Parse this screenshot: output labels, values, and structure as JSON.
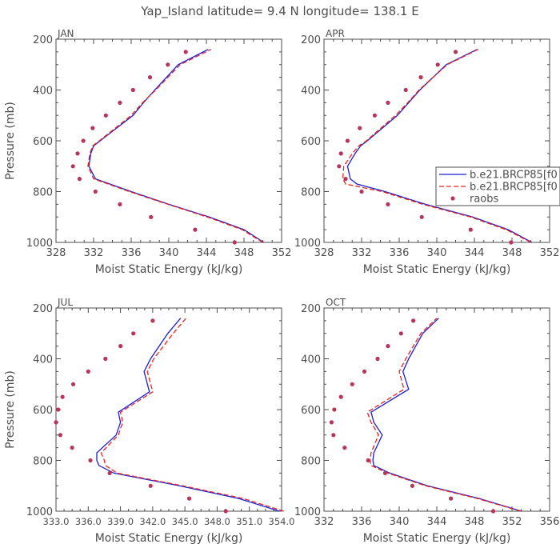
{
  "figure": {
    "title": "Yap_Island  latitude= 9.4 N longitude= 138.1 E"
  },
  "legend": {
    "entries": [
      {
        "label": "b.e21.BRCP85[f0",
        "color": "#1f1fd6",
        "style": "solid"
      },
      {
        "label": "b.e21.BRCP85[f0",
        "color": "#e8251f",
        "style": "dashed"
      },
      {
        "label": "raobs",
        "color": "#b8355a",
        "style": "marker"
      }
    ]
  },
  "chart_data": [
    {
      "type": "line",
      "panel_label": "JAN",
      "xlabel": "Moist Static Energy (kJ/kg)",
      "ylabel": "Pressure (mb)",
      "xlim": [
        328,
        352
      ],
      "ylim": [
        1000,
        200
      ],
      "xticks": [
        "328",
        "332",
        "336",
        "340",
        "344",
        "348",
        "352"
      ],
      "yticks": [
        "200",
        "400",
        "600",
        "800",
        "1000"
      ],
      "show_legend": false,
      "series": [
        {
          "pressure": [
            1000,
            950,
            900,
            850,
            800,
            750,
            700,
            650,
            620,
            600,
            500,
            450,
            400,
            300,
            240
          ],
          "mse": [
            350.1,
            348.0,
            344.3,
            340.0,
            336.0,
            332.2,
            331.5,
            331.7,
            332.0,
            332.7,
            336.2,
            337.3,
            338.5,
            341.0,
            344.2
          ]
        },
        {
          "pressure": [
            1000,
            950,
            900,
            850,
            800,
            750,
            700,
            650,
            620,
            600,
            500,
            450,
            400,
            300,
            240
          ],
          "mse": [
            350.0,
            347.8,
            344.1,
            339.9,
            335.8,
            332.0,
            331.4,
            331.6,
            331.9,
            332.6,
            336.0,
            337.2,
            338.6,
            341.2,
            344.5
          ]
        },
        {
          "pressure": [
            250,
            300,
            350,
            400,
            450,
            500,
            550,
            600,
            650,
            700,
            750,
            800,
            850,
            900,
            950,
            1000
          ],
          "mse": [
            341.8,
            339.9,
            338.0,
            336.2,
            334.8,
            333.3,
            331.9,
            330.9,
            330.3,
            329.8,
            330.5,
            332.2,
            334.8,
            338.1,
            342.8,
            347.0
          ]
        }
      ]
    },
    {
      "type": "line",
      "panel_label": "APR",
      "xlabel": "Moist Static Energy (kJ/kg)",
      "ylabel": "",
      "xlim": [
        328,
        352
      ],
      "ylim": [
        1000,
        200
      ],
      "xticks": [
        "328",
        "332",
        "336",
        "340",
        "344",
        "348",
        "352"
      ],
      "yticks": [
        "200",
        "400",
        "600",
        "800",
        "1000"
      ],
      "show_legend": true,
      "series": [
        {
          "pressure": [
            1000,
            950,
            900,
            850,
            800,
            770,
            750,
            700,
            650,
            620,
            600,
            500,
            450,
            400,
            300,
            240
          ],
          "mse": [
            350.1,
            347.6,
            343.8,
            338.8,
            334.5,
            331.5,
            330.8,
            330.5,
            331.3,
            331.9,
            332.6,
            335.8,
            337.0,
            338.2,
            341.0,
            344.3
          ]
        },
        {
          "pressure": [
            1000,
            950,
            900,
            850,
            800,
            770,
            750,
            700,
            650,
            620,
            600,
            500,
            450,
            400,
            300,
            240
          ],
          "mse": [
            350.0,
            347.4,
            343.6,
            338.5,
            334.2,
            330.3,
            330.0,
            330.1,
            331.0,
            331.7,
            332.5,
            335.6,
            336.9,
            338.1,
            341.1,
            344.4
          ]
        },
        {
          "pressure": [
            250,
            300,
            350,
            400,
            450,
            500,
            550,
            600,
            650,
            700,
            750,
            800,
            850,
            900,
            950,
            1000
          ],
          "mse": [
            342.0,
            340.1,
            338.3,
            336.7,
            334.8,
            333.4,
            331.8,
            330.5,
            329.8,
            329.6,
            330.3,
            332.0,
            334.8,
            338.4,
            343.6,
            347.9
          ]
        }
      ]
    },
    {
      "type": "line",
      "panel_label": "JUL",
      "xlabel": "Moist Static Energy (kJ/kg)",
      "ylabel": "Pressure (mb)",
      "xlim": [
        333.0,
        354.0
      ],
      "ylim": [
        1000,
        200
      ],
      "xticks": [
        "333.0",
        "336.0",
        "339.0",
        "342.0",
        "345.0",
        "348.0",
        "351.0",
        "354.0"
      ],
      "yticks": [
        "200",
        "400",
        "600",
        "800",
        "1000"
      ],
      "show_legend": false,
      "series": [
        {
          "pressure": [
            1000,
            950,
            900,
            850,
            820,
            800,
            770,
            700,
            650,
            610,
            530,
            450,
            400,
            300,
            240
          ],
          "mse": [
            353.8,
            350.0,
            344.5,
            338.4,
            337.0,
            336.8,
            336.8,
            338.6,
            339.0,
            338.8,
            341.7,
            341.2,
            341.8,
            343.4,
            344.6
          ]
        },
        {
          "pressure": [
            1000,
            950,
            900,
            850,
            820,
            800,
            770,
            700,
            650,
            610,
            530,
            450,
            400,
            300,
            240
          ],
          "mse": [
            354.2,
            350.4,
            344.8,
            338.7,
            337.6,
            337.5,
            337.2,
            338.8,
            339.2,
            339.0,
            342.0,
            341.5,
            342.1,
            343.9,
            345.1
          ]
        },
        {
          "pressure": [
            250,
            300,
            350,
            400,
            450,
            500,
            550,
            600,
            650,
            700,
            750,
            800,
            850,
            900,
            950,
            1000
          ],
          "mse": [
            342.0,
            340.2,
            339.0,
            337.6,
            336.0,
            334.6,
            333.6,
            333.2,
            333.0,
            333.4,
            334.5,
            336.2,
            338.0,
            341.8,
            345.4,
            348.8
          ]
        }
      ]
    },
    {
      "type": "line",
      "panel_label": "OCT",
      "xlabel": "Moist Static Energy (kJ/kg)",
      "ylabel": "",
      "xlim": [
        332,
        356
      ],
      "ylim": [
        1000,
        200
      ],
      "xticks": [
        "332",
        "336",
        "340",
        "344",
        "348",
        "352",
        "356"
      ],
      "yticks": [
        "200",
        "400",
        "600",
        "800",
        "1000"
      ],
      "show_legend": false,
      "series": [
        {
          "pressure": [
            1000,
            950,
            900,
            850,
            820,
            800,
            770,
            700,
            650,
            610,
            520,
            450,
            400,
            300,
            240
          ],
          "mse": [
            353.0,
            348.5,
            343.0,
            339.0,
            337.3,
            337.2,
            337.3,
            338.2,
            337.3,
            337.0,
            341.0,
            340.4,
            341.0,
            342.5,
            344.2
          ]
        },
        {
          "pressure": [
            1000,
            950,
            900,
            850,
            820,
            800,
            770,
            700,
            650,
            610,
            520,
            450,
            400,
            300,
            240
          ],
          "mse": [
            352.9,
            348.3,
            342.8,
            338.8,
            337.0,
            336.9,
            337.0,
            337.8,
            337.0,
            336.6,
            340.5,
            340.0,
            340.7,
            342.3,
            344.0
          ]
        },
        {
          "pressure": [
            250,
            300,
            350,
            400,
            450,
            500,
            550,
            600,
            650,
            700,
            750,
            800,
            850,
            900,
            950,
            1000
          ],
          "mse": [
            341.5,
            340.2,
            338.8,
            337.7,
            336.3,
            335.0,
            333.8,
            333.1,
            332.8,
            333.0,
            334.2,
            336.7,
            338.5,
            341.4,
            345.5,
            350.0
          ]
        }
      ]
    }
  ]
}
